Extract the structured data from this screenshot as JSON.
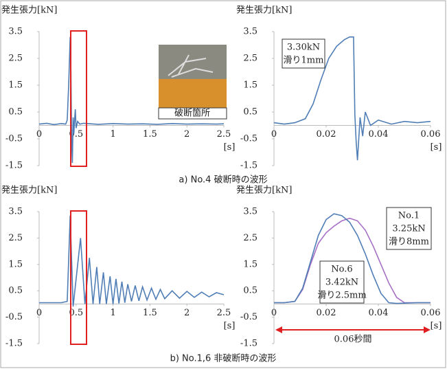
{
  "captions": [
    "a) No.4 破断時の波形",
    "b) No.1,6 非破断時の波形"
  ],
  "chart_data": [
    {
      "type": "line",
      "y_label": "発生張力[kN]",
      "x_unit": "[s]",
      "photo_label": "破断箇所",
      "xlim": [
        0,
        2.5
      ],
      "ylim": [
        -1.5,
        3.5
      ],
      "xticks": [
        0,
        0.5,
        1,
        1.5,
        2,
        2.5
      ],
      "yticks": [
        3.5,
        2.5,
        1.5,
        0.5,
        -0.5,
        -1.5
      ],
      "series": [
        {
          "color": "#4f7db5",
          "x": [
            0,
            0.1,
            0.2,
            0.3,
            0.36,
            0.38,
            0.4,
            0.42,
            0.43,
            0.44,
            0.45,
            0.46,
            0.47,
            0.48,
            0.49,
            0.5,
            0.52,
            0.55,
            0.6,
            0.8,
            1.0,
            1.2,
            1.4,
            1.6,
            1.8,
            2.0,
            2.2,
            2.4,
            2.5
          ],
          "values": [
            0.05,
            0.08,
            0.03,
            0.07,
            0.05,
            0.2,
            1.5,
            3.3,
            2.0,
            -0.5,
            -1.4,
            0.3,
            -0.3,
            0.2,
            0.6,
            -0.1,
            0.15,
            0.05,
            0.08,
            0.04,
            0.07,
            0.05,
            0.06,
            0.04,
            0.07,
            0.05,
            0.06,
            0.05,
            0.06
          ]
        }
      ]
    },
    {
      "type": "line",
      "y_label": "発生張力[kN]",
      "x_unit": "[s]",
      "annotations": [
        [
          "3.30kN",
          "滑り1mm"
        ]
      ],
      "xlim": [
        0,
        0.06
      ],
      "ylim": [
        -1.5,
        3.5
      ],
      "xticks": [
        0,
        0.02,
        0.04,
        0.06
      ],
      "yticks": [
        3.5,
        2.5,
        1.5,
        0.5,
        -0.5,
        -1.5
      ],
      "series": [
        {
          "color": "#4f7db5",
          "x": [
            0,
            0.004,
            0.008,
            0.012,
            0.015,
            0.018,
            0.021,
            0.024,
            0.027,
            0.029,
            0.0305,
            0.031,
            0.0315,
            0.032,
            0.033,
            0.034,
            0.035,
            0.037,
            0.04,
            0.045,
            0.05,
            0.055,
            0.06
          ],
          "values": [
            0.1,
            0.05,
            0.1,
            0.25,
            0.8,
            1.7,
            2.5,
            2.95,
            3.2,
            3.3,
            3.3,
            0.4,
            -0.6,
            -1.3,
            0.3,
            -0.4,
            0.5,
            0,
            0.2,
            0.05,
            0.15,
            0.1,
            0.15
          ]
        }
      ]
    },
    {
      "type": "line",
      "y_label": "発生張力[kN]",
      "x_unit": "[s]",
      "xlim": [
        0,
        2.5
      ],
      "ylim": [
        -1.5,
        3.5
      ],
      "xticks": [
        0,
        0.5,
        1,
        1.5,
        2,
        2.5
      ],
      "yticks": [
        3.5,
        2.5,
        1.5,
        0.5,
        -0.5,
        -1.5
      ],
      "series": [
        {
          "color": "#4f7db5",
          "x": [
            0,
            0.3,
            0.38,
            0.42,
            0.46,
            0.56,
            0.62,
            0.68,
            0.73,
            0.78,
            0.82,
            0.87,
            0.91,
            0.96,
            1.0,
            1.04,
            1.08,
            1.12,
            1.16,
            1.2,
            1.25,
            1.3,
            1.35,
            1.4,
            1.46,
            1.52,
            1.58,
            1.64,
            1.7,
            1.8,
            1.9,
            2.0,
            2.1,
            2.2,
            2.3,
            2.4,
            2.5
          ],
          "values": [
            0.05,
            0.05,
            0.1,
            3.35,
            -0.1,
            2.5,
            0,
            1.75,
            0,
            1.4,
            0,
            1.2,
            0,
            1.05,
            0,
            0.95,
            0.02,
            0.85,
            0.05,
            0.75,
            0.1,
            0.7,
            0.12,
            0.65,
            0.15,
            0.6,
            0.18,
            0.55,
            0.2,
            0.5,
            0.22,
            0.48,
            0.25,
            0.45,
            0.27,
            0.43,
            0.35
          ]
        }
      ]
    },
    {
      "type": "line",
      "y_label": "発生張力[kN]",
      "x_unit": "[s]",
      "span_label": "0.06秒間",
      "annotations": [
        [
          "No.1",
          "3.25kN",
          "滑り8mm"
        ],
        [
          "No.6",
          "3.42kN",
          "滑り2.5mm"
        ]
      ],
      "xlim": [
        0,
        0.06
      ],
      "ylim": [
        -1.5,
        3.5
      ],
      "xticks": [
        0,
        0.02,
        0.04,
        0.06
      ],
      "yticks": [
        3.5,
        2.5,
        1.5,
        0.5,
        -0.5,
        -1.5
      ],
      "series": [
        {
          "color": "#a56fc4",
          "x": [
            0,
            0.004,
            0.008,
            0.011,
            0.014,
            0.017,
            0.02,
            0.023,
            0.026,
            0.029,
            0.032,
            0.035,
            0.038,
            0.041,
            0.044,
            0.047,
            0.05,
            0.055,
            0.06
          ],
          "values": [
            0.05,
            0.05,
            0.1,
            0.55,
            1.5,
            2.3,
            2.7,
            2.95,
            3.15,
            3.25,
            3.15,
            2.8,
            2.2,
            1.5,
            0.8,
            0.25,
            0.05,
            0.05,
            0.05
          ]
        },
        {
          "color": "#4f7db5",
          "x": [
            0,
            0.004,
            0.008,
            0.011,
            0.014,
            0.017,
            0.02,
            0.023,
            0.026,
            0.029,
            0.032,
            0.035,
            0.038,
            0.041,
            0.044,
            0.047,
            0.05,
            0.055,
            0.06
          ],
          "values": [
            0.05,
            0.05,
            0.1,
            0.6,
            1.6,
            2.6,
            3.2,
            3.42,
            3.35,
            3.1,
            2.6,
            1.9,
            1.1,
            0.4,
            0.05,
            0.02,
            0.03,
            0.05,
            0.05
          ]
        }
      ]
    }
  ]
}
